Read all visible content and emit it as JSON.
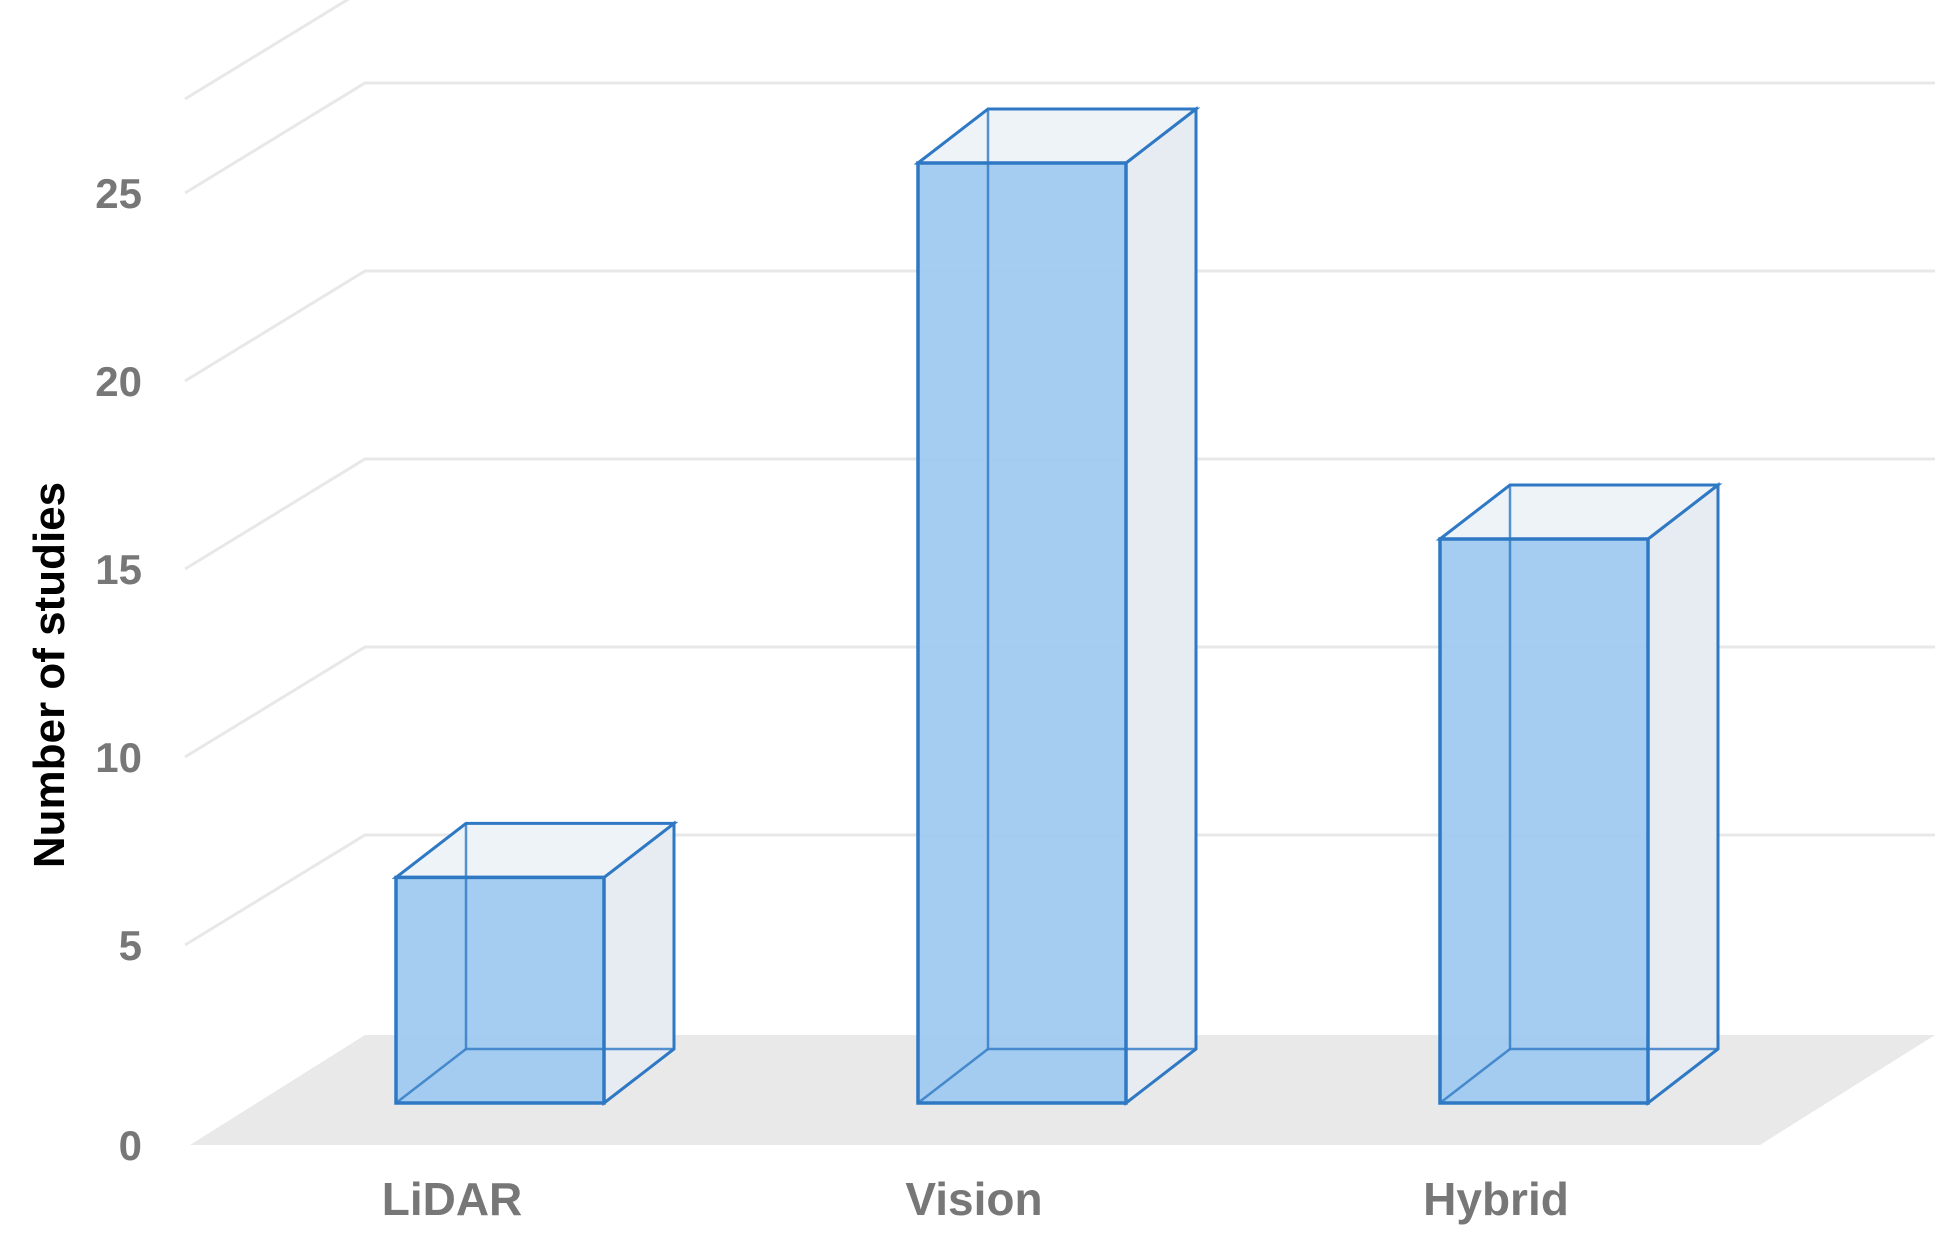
{
  "chart_data": {
    "type": "bar",
    "style": "3d",
    "title": "",
    "xlabel": "",
    "ylabel": "Number of studies",
    "categories": [
      "LiDAR",
      "Vision",
      "Hybrid"
    ],
    "values": [
      6,
      25,
      15
    ],
    "ylim": [
      0,
      25
    ],
    "yticks": [
      0,
      5,
      10,
      15,
      20,
      25
    ],
    "grid": true,
    "legend": "none",
    "colors": {
      "bar_fill": "#9fcaf0",
      "bar_edge": "#2e78c4",
      "bar_side": "#e6ecf2",
      "bar_top": "#eef3f8",
      "floor": "#e9e9e9",
      "grid": "#e8e8e8",
      "text": "#777777"
    }
  }
}
